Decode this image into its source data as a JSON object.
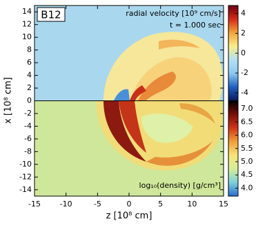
{
  "chart_data": {
    "type": "heatmap",
    "panel_label": "B12",
    "xlabel": "z [10⁸ cm]",
    "ylabel": "x [10⁸ cm]",
    "xlim": [
      -15,
      15
    ],
    "ylim": [
      -15,
      15
    ],
    "xticks": [
      -15,
      -10,
      -5,
      0,
      5,
      10,
      15
    ],
    "yticks": [
      -14,
      -12,
      -10,
      -8,
      -6,
      -4,
      -2,
      0,
      2,
      4,
      6,
      8,
      10,
      12,
      14
    ],
    "colorbars": [
      {
        "label": "radial velocity [10⁹ cm/s]",
        "annotation": "t = 1.000 sec",
        "lim": [
          -4.8,
          4.8
        ],
        "ticks": [
          -4,
          -2,
          0,
          2,
          4
        ],
        "colors": [
          "#0a1a5a",
          "#1f5fc0",
          "#8cc8f0",
          "#b4e0f4",
          "#f8ec8a",
          "#f3a53a",
          "#d42a18",
          "#6a0010"
        ]
      },
      {
        "label": "log₁₀(density) [g/cm³]",
        "lim": [
          3.7,
          7.3
        ],
        "ticks": [
          {
            "value": 4,
            "label": "4.0"
          },
          {
            "value": 4.5,
            "label": "4.5"
          },
          {
            "value": 5,
            "label": "5.0"
          },
          {
            "value": 5.5,
            "label": "5.5"
          },
          {
            "value": 6,
            "label": "6.0"
          },
          {
            "value": 6.5,
            "label": "6.5"
          },
          {
            "value": 7,
            "label": "7.0"
          }
        ],
        "colors": [
          "#2a6cd0",
          "#7cd0d8",
          "#d6ee9a",
          "#f6e478",
          "#f0a038",
          "#d03418",
          "#7a0e08",
          "#000000"
        ]
      }
    ]
  }
}
